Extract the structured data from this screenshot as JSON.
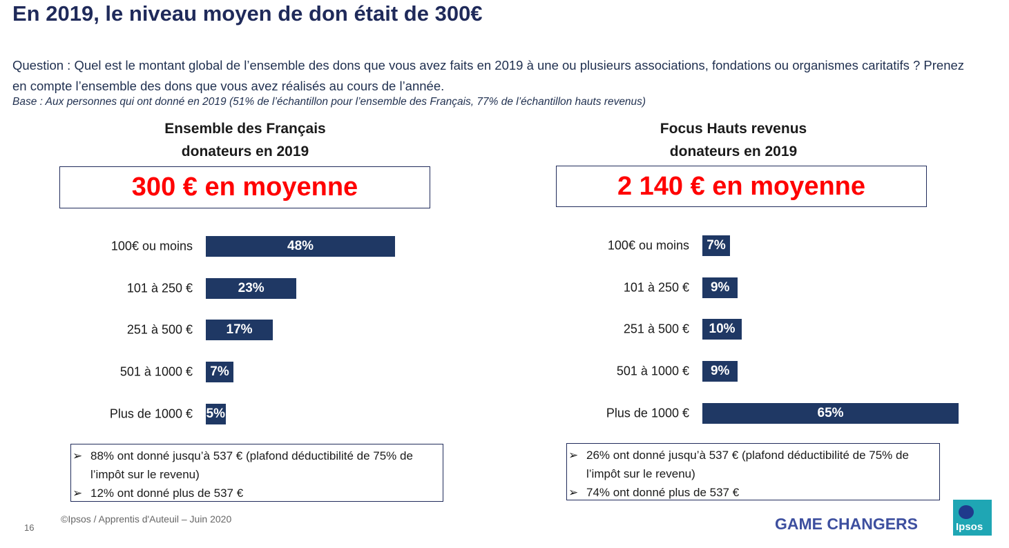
{
  "header": {
    "title": "En 2019, le niveau moyen de don était de 300€",
    "question": "Question : Quel est le montant global de l’ensemble des dons que vous avez faits en 2019 à une ou plusieurs associations, fondations ou organismes caritatifs ? Prenez en compte l’ensemble des dons que vous avez réalisés au cours de l’année.",
    "base": "Base : Aux personnes qui ont donné en 2019 (51% de l’échantillon pour l’ensemble des Français, 77% de l’échantillon hauts revenus)"
  },
  "chart_data": [
    {
      "type": "bar",
      "title": [
        "Ensemble des Français",
        "donateurs en 2019"
      ],
      "headline": "300 € en moyenne",
      "categories": [
        "100€ ou moins",
        "101 à 250 €",
        "251 à 500 €",
        "501 à 1000 €",
        "Plus de 1000 €"
      ],
      "values": [
        48,
        23,
        17,
        7,
        5
      ],
      "value_labels": [
        "48%",
        "23%",
        "17%",
        "7%",
        "5%"
      ],
      "color": "#1f3864",
      "notes": [
        "88% ont donné jusqu’à 537 € (plafond déductibilité de 75% de l’impôt sur le revenu)",
        "12% ont donné plus de 537 €"
      ]
    },
    {
      "type": "bar",
      "title": [
        "Focus Hauts revenus",
        "donateurs en 2019"
      ],
      "headline": "2 140 € en moyenne",
      "categories": [
        "100€ ou moins",
        "101 à 250 €",
        "251 à 500 €",
        "501 à 1000 €",
        "Plus de 1000 €"
      ],
      "values": [
        7,
        9,
        10,
        9,
        65
      ],
      "value_labels": [
        "7%",
        "9%",
        "10%",
        "9%",
        "65%"
      ],
      "color": "#1f3864",
      "notes": [
        "26% ont donné jusqu’à 537 € (plafond déductibilité de 75% de l’impôt sur le revenu)",
        "74% ont donné plus de 537 €"
      ]
    }
  ],
  "footer": {
    "page": "16",
    "copyright": "©Ipsos / Apprentis d'Auteuil – Juin 2020",
    "tagline": "GAME CHANGERS",
    "logo": "Ipsos"
  }
}
